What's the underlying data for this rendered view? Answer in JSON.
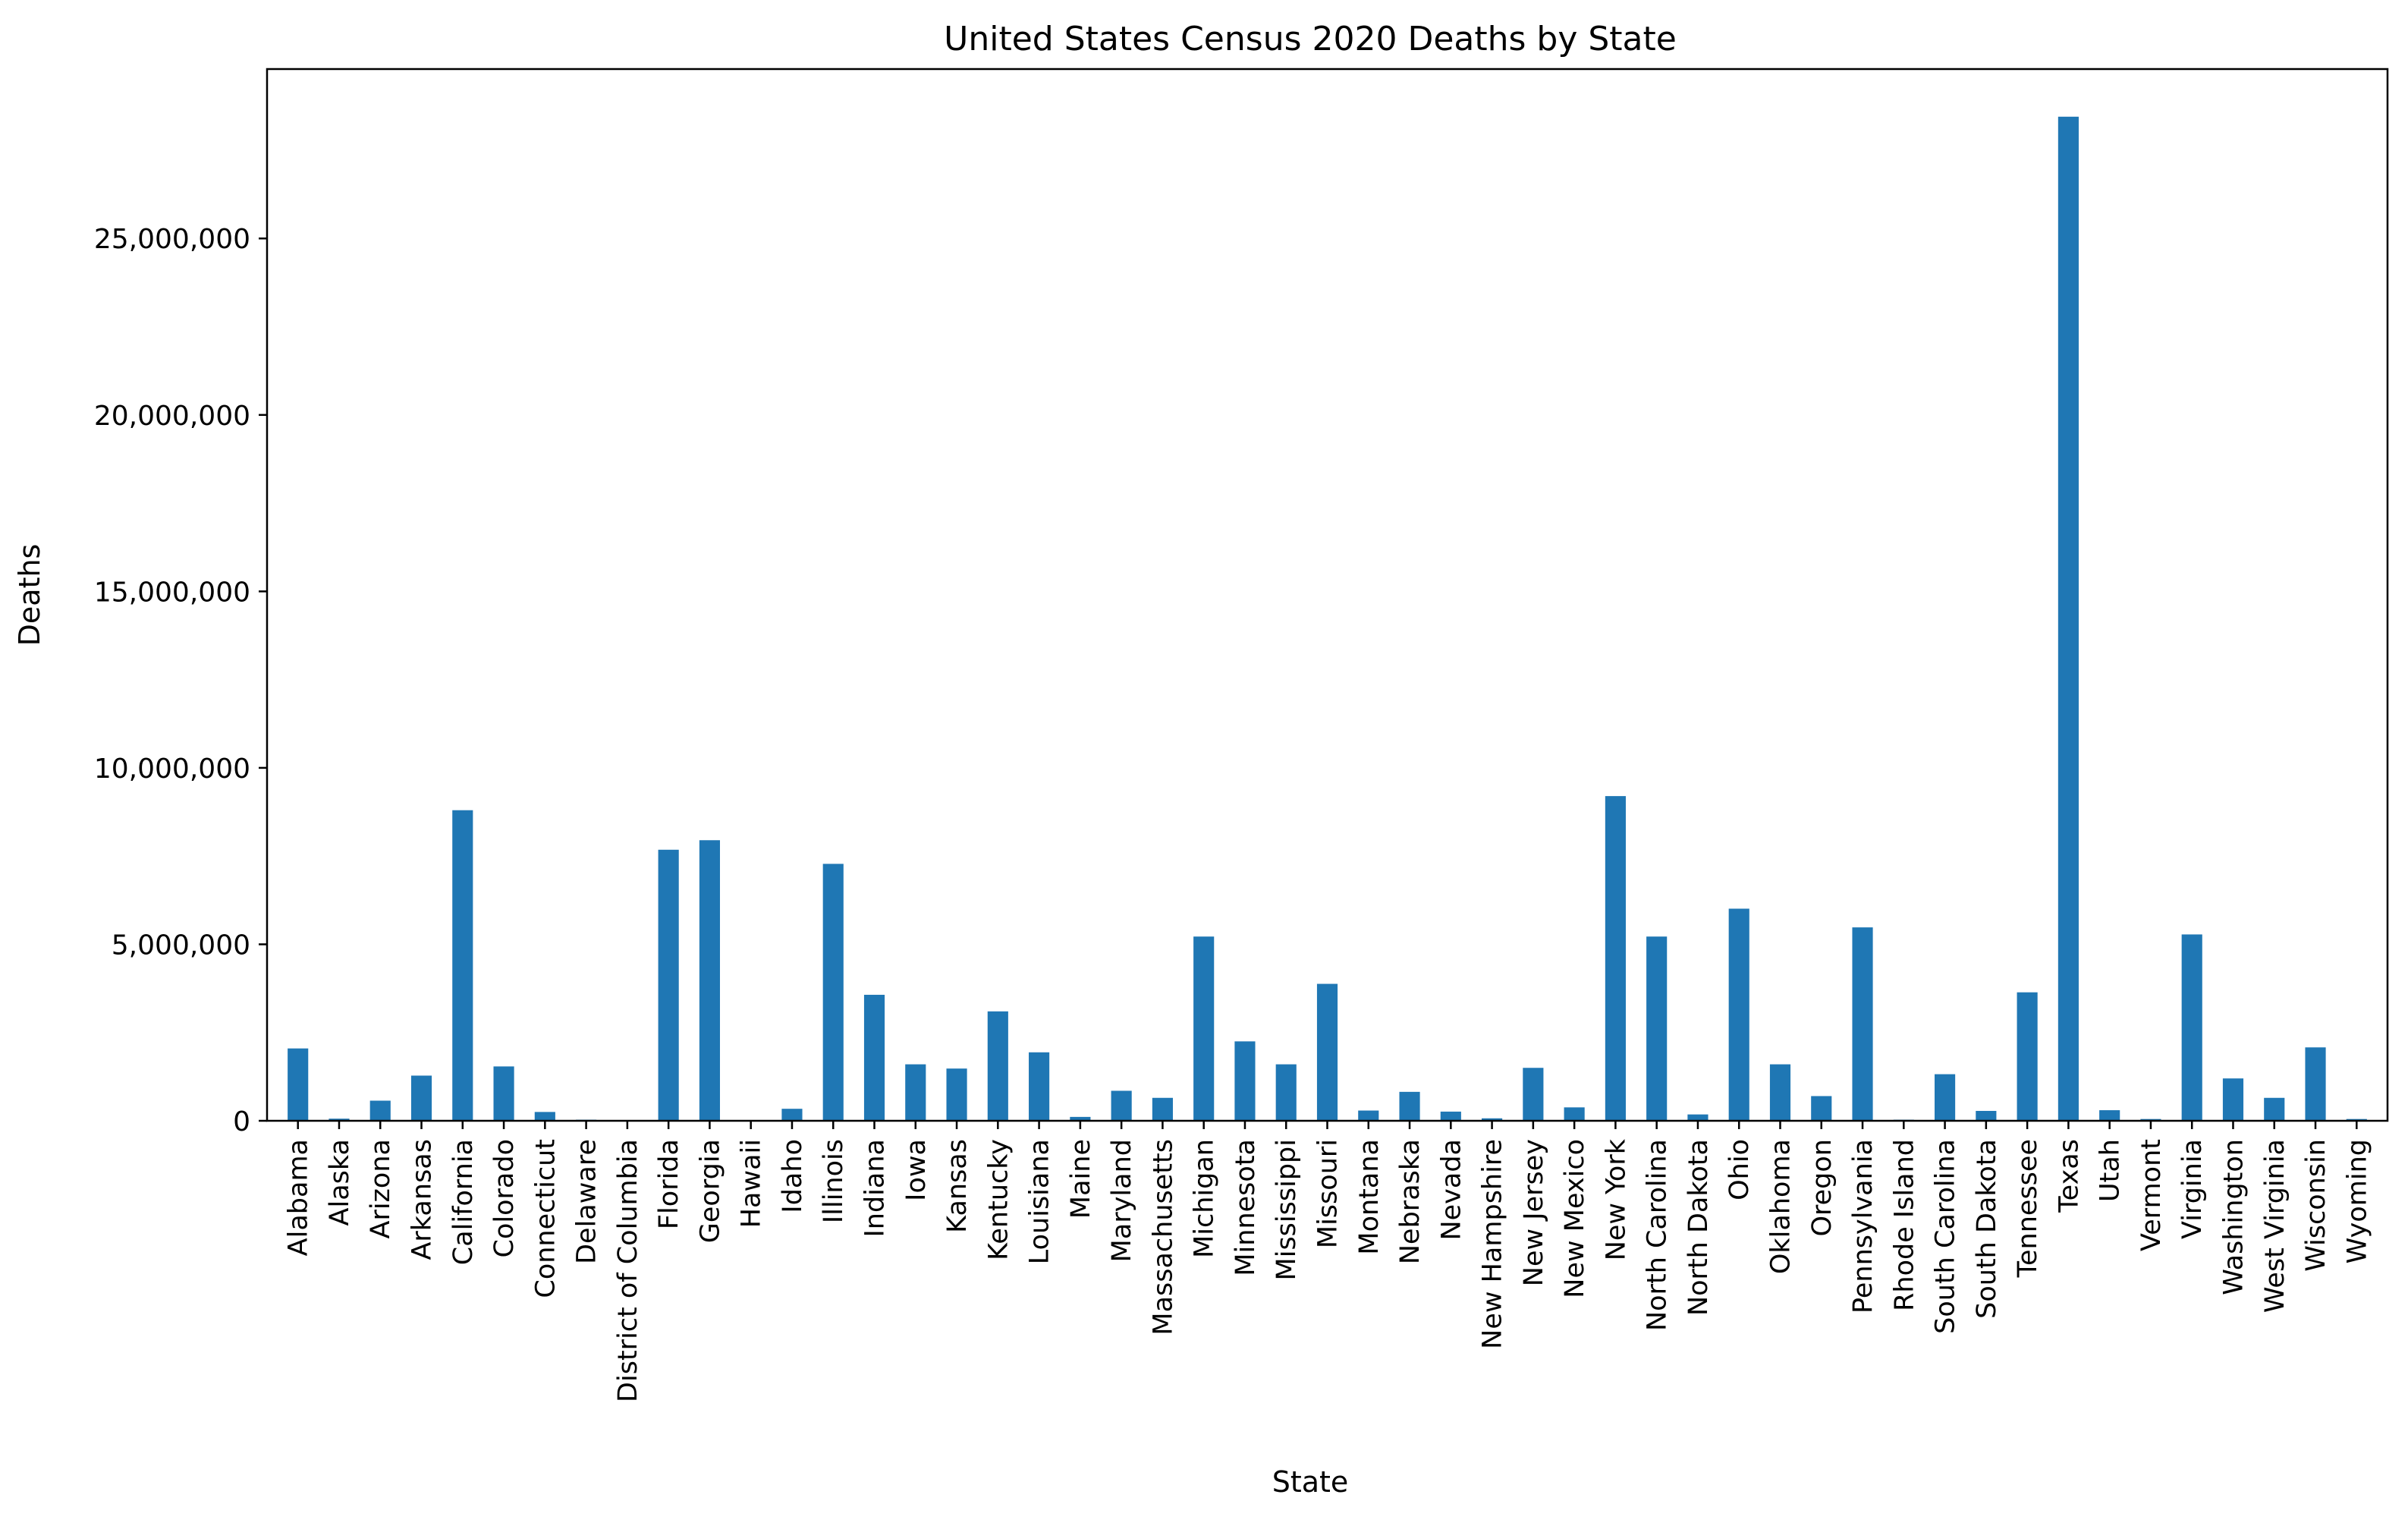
{
  "chart_data": {
    "type": "bar",
    "title": "United States Census 2020 Deaths by State",
    "xlabel": "State",
    "ylabel": "Deaths",
    "ylim": [
      0,
      29800000
    ],
    "grid": false,
    "legend": "none",
    "yticks": [
      0,
      5000000,
      10000000,
      15000000,
      20000000,
      25000000
    ],
    "ytick_labels": [
      "0",
      "5,000,000",
      "10,000,000",
      "15,000,000",
      "20,000,000",
      "25,000,000"
    ],
    "bar_color": "#1f77b4",
    "categories": [
      "Alabama",
      "Alaska",
      "Arizona",
      "Arkansas",
      "California",
      "Colorado",
      "Connecticut",
      "Delaware",
      "District of Columbia",
      "Florida",
      "Georgia",
      "Hawaii",
      "Idaho",
      "Illinois",
      "Indiana",
      "Iowa",
      "Kansas",
      "Kentucky",
      "Louisiana",
      "Maine",
      "Maryland",
      "Massachusetts",
      "Michigan",
      "Minnesota",
      "Mississippi",
      "Missouri",
      "Montana",
      "Nebraska",
      "Nevada",
      "New Hampshire",
      "New Jersey",
      "New Mexico",
      "New York",
      "North Carolina",
      "North Dakota",
      "Ohio",
      "Oklahoma",
      "Oregon",
      "Pennsylvania",
      "Rhode Island",
      "South Carolina",
      "South Dakota",
      "Tennessee",
      "Texas",
      "Utah",
      "Vermont",
      "Virginia",
      "Washington",
      "West Virginia",
      "Wisconsin",
      "Wyoming"
    ],
    "values": [
      2050000,
      60000,
      570000,
      1280000,
      8800000,
      1540000,
      250000,
      30000,
      20000,
      7680000,
      7950000,
      20000,
      340000,
      7280000,
      3570000,
      1600000,
      1480000,
      3100000,
      1940000,
      110000,
      850000,
      650000,
      5220000,
      2250000,
      1600000,
      3880000,
      290000,
      820000,
      260000,
      70000,
      1500000,
      380000,
      9200000,
      5220000,
      180000,
      6010000,
      1600000,
      700000,
      5480000,
      30000,
      1320000,
      280000,
      3640000,
      28450000,
      300000,
      50000,
      5280000,
      1200000,
      650000,
      2080000,
      50000
    ]
  }
}
